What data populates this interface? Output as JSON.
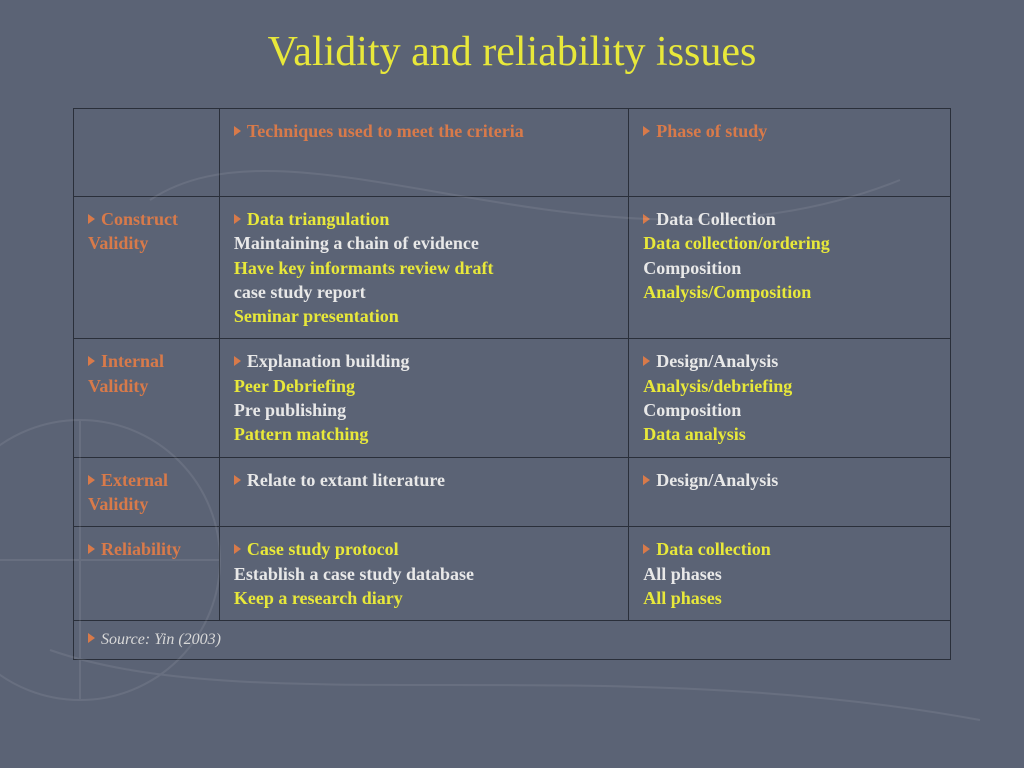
{
  "slide": {
    "title": "Validity and reliability issues",
    "title_color": "#e8e83a",
    "background_color": "#5b6375",
    "table": {
      "border_color": "#2a2f3a",
      "header": {
        "col1": "",
        "col2": "Techniques used to meet the criteria",
        "col3": "Phase of study",
        "color": "#d87a4a"
      },
      "rows": [
        {
          "label": "Construct Validity",
          "label_color": "#d87a4a",
          "techniques": [
            {
              "text": "Data triangulation",
              "color": "#e8e83a"
            },
            {
              "text": "Maintaining a chain of evidence",
              "color": "#e8e8e8"
            },
            {
              "text": "Have key informants review draft",
              "color": "#e8e83a"
            },
            {
              "text": "case study report",
              "color": "#e8e8e8"
            },
            {
              "text": "Seminar presentation",
              "color": "#e8e83a"
            }
          ],
          "phases": [
            {
              "text": "Data Collection",
              "color": "#e8e8e8"
            },
            {
              "text": "Data collection/ordering",
              "color": "#e8e83a"
            },
            {
              "text": "Composition",
              "color": "#e8e8e8"
            },
            {
              "text": "Analysis/Composition",
              "color": "#e8e83a"
            }
          ]
        },
        {
          "label": "Internal Validity",
          "label_color": "#d87a4a",
          "techniques": [
            {
              "text": "Explanation building",
              "color": "#e8e8e8"
            },
            {
              "text": "Peer Debriefing",
              "color": "#e8e83a"
            },
            {
              "text": "Pre publishing",
              "color": "#e8e8e8"
            },
            {
              "text": "Pattern matching",
              "color": "#e8e83a"
            }
          ],
          "phases": [
            {
              "text": "Design/Analysis",
              "color": "#e8e8e8"
            },
            {
              "text": "Analysis/debriefing",
              "color": "#e8e83a"
            },
            {
              "text": "Composition",
              "color": "#e8e8e8"
            },
            {
              "text": "Data analysis",
              "color": "#e8e83a"
            }
          ]
        },
        {
          "label": "External Validity",
          "label_color": "#d87a4a",
          "techniques": [
            {
              "text": "Relate to extant literature",
              "color": "#e8e8e8"
            }
          ],
          "phases": [
            {
              "text": "Design/Analysis",
              "color": "#e8e8e8"
            }
          ]
        },
        {
          "label": "Reliability",
          "label_color": "#d87a4a",
          "techniques": [
            {
              "text": "Case study protocol",
              "color": "#e8e83a"
            },
            {
              "text": "Establish a case study database",
              "color": "#e8e8e8"
            },
            {
              "text": "Keep a research diary",
              "color": "#e8e83a"
            }
          ],
          "phases": [
            {
              "text": "Data collection",
              "color": "#e8e83a"
            },
            {
              "text": "All phases",
              "color": "#e8e8e8"
            },
            {
              "text": "All phases",
              "color": "#e8e83a"
            }
          ]
        }
      ],
      "source": "Source: Yin (2003)"
    }
  }
}
